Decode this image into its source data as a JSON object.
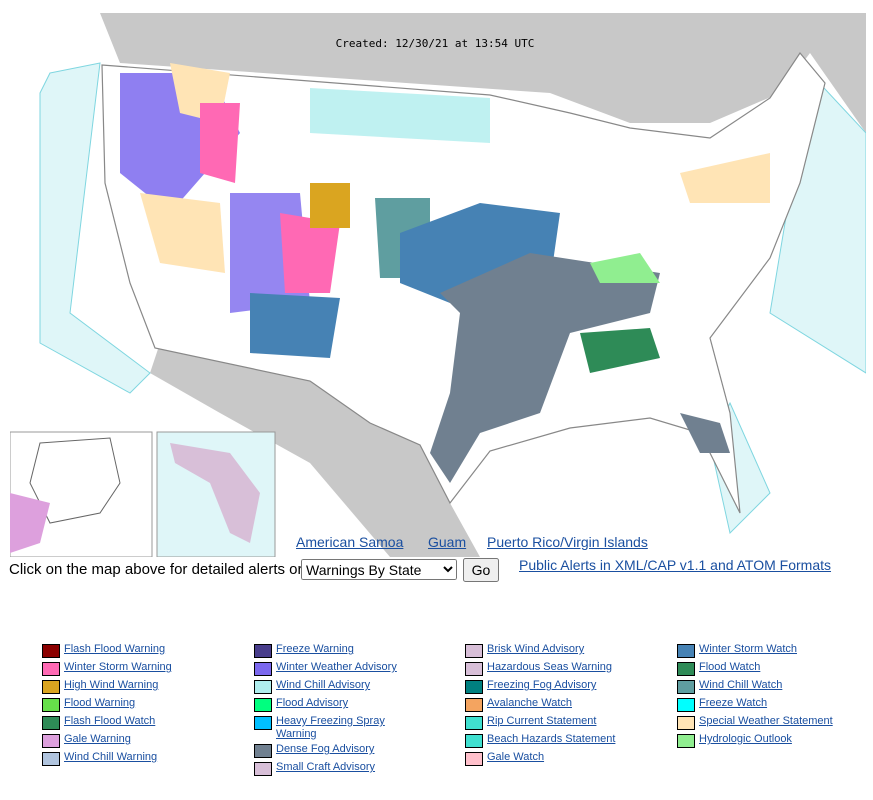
{
  "map": {
    "created": "Created: 12/30/21 at 13:54 UTC",
    "links": [
      "American Samoa",
      "Guam",
      "Puerto Rico/Virgin Islands"
    ]
  },
  "controls": {
    "prompt": "Click on the map above for detailed alerts or",
    "select": "Warnings By State",
    "button": "Go",
    "cap_link": "Public Alerts in XML/CAP v1.1 and ATOM Formats"
  },
  "legend": {
    "columns": [
      [
        {
          "label": "Flash Flood Warning",
          "color": "#8b0000"
        },
        {
          "label": "Winter Storm Warning",
          "color": "#ff69b4"
        },
        {
          "label": "High Wind Warning",
          "color": "#daa520"
        },
        {
          "label": "Flood Warning",
          "color": "#66e04a"
        },
        {
          "label": "Flash Flood Watch",
          "color": "#2e8b57"
        },
        {
          "label": "Gale Warning",
          "color": "#dda0dd"
        },
        {
          "label": "Wind Chill Warning",
          "color": "#b0c4de"
        }
      ],
      [
        {
          "label": "Freeze Warning",
          "color": "#483d8b"
        },
        {
          "label": "Winter Weather Advisory",
          "color": "#7b68ee"
        },
        {
          "label": "Wind Chill Advisory",
          "color": "#afeeee"
        },
        {
          "label": "Flood Advisory",
          "color": "#00ff7f"
        },
        {
          "label": "Heavy Freezing Spray Warning",
          "color": "#00bfff"
        },
        {
          "label": "Dense Fog Advisory",
          "color": "#708090"
        },
        {
          "label": "Small Craft Advisory",
          "color": "#d8bfd8"
        }
      ],
      [
        {
          "label": "Brisk Wind Advisory",
          "color": "#d8bfd8"
        },
        {
          "label": "Hazardous Seas Warning",
          "color": "#d8bfd8"
        },
        {
          "label": "Freezing Fog Advisory",
          "color": "#008080"
        },
        {
          "label": "Avalanche Watch",
          "color": "#f4a460"
        },
        {
          "label": "Rip Current Statement",
          "color": "#40e0d0"
        },
        {
          "label": "Beach Hazards Statement",
          "color": "#40e0d0"
        },
        {
          "label": "Gale Watch",
          "color": "#ffc0cb"
        }
      ],
      [
        {
          "label": "Winter Storm Watch",
          "color": "#4682b4"
        },
        {
          "label": "Flood Watch",
          "color": "#2e8b57"
        },
        {
          "label": "Wind Chill Watch",
          "color": "#5f9ea0"
        },
        {
          "label": "Freeze Watch",
          "color": "#00ffff"
        },
        {
          "label": "Special Weather Statement",
          "color": "#ffe4b5"
        },
        {
          "label": "Hydrologic Outlook",
          "color": "#90ee90"
        }
      ]
    ]
  }
}
